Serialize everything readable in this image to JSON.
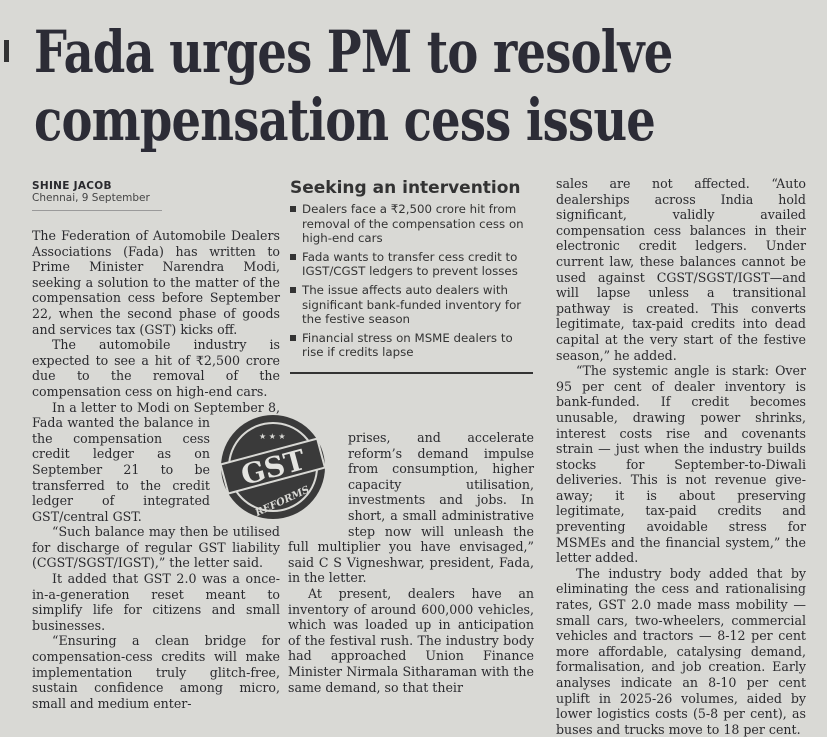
{
  "headline": "Fada urges PM to resolve compensation cess issue",
  "byline": {
    "author": "SHINE JACOB",
    "dateline": "Chennai, 9 September"
  },
  "sidebar": {
    "title": "Seeking an intervention",
    "bullets": [
      "Dealers face a ₹2,500 crore hit from removal of the compensation cess on high-end cars",
      "Fada wants to transfer cess credit to IGST/CGST ledgers to prevent losses",
      "The issue affects auto dealers with significant bank-funded inventory for the festive season",
      "Financial stress on MSME dealers to rise if credits lapse"
    ]
  },
  "badge": {
    "text": "GST",
    "subtext": "REFORMS"
  },
  "columns": {
    "col1": [
      "The Federation of Automobile Dealers Associations (Fada) has written to Prime Minister Narendra Modi, seeking a solution to the matter of the compensation cess before September 22, when the second phase of goods and services tax (GST) kicks off.",
      "The automobile industry is expected to see a hit of ₹2,500 crore due to the removal of the compensation cess on high-end cars.",
      "In a letter to Modi on September 8, Fada wanted the balance in the compensation cess credit ledger as on September 21 to be transferred to the credit ledger of integrated GST/central GST.",
      "“Such balance may then be utilised for discharge of regular GST liability (CGST/SGST/IGST),” the letter said.",
      "It added that GST 2.0 was a once-in-a-generation reset meant to simplify life for citizens and small businesses.",
      "“Ensuring a clean bridge for compensation-cess credits will make implementation truly glitch-free, sustain confidence among micro, small and medium enter-"
    ],
    "col2": [
      "prises, and accelerate reform’s demand impulse from consumption, higher capacity utilisation, investments and jobs. In short, a small administrative step now will unleash the full multiplier you have envisaged,” said C S Vigneshwar, president, Fada, in the letter.",
      "At present, dealers have an inventory of around 600,000 vehicles, which was loaded up in anticipation of the festival rush. The industry body had approached Union Finance Minister Nirmala Sitharaman with the same demand, so that their"
    ],
    "col3": [
      "sales are not affected. “Auto dealerships across India hold significant, validly availed compensation cess balances in their electronic credit ledgers. Under current law, these balances cannot be used against CGST/SGST/IGST—and will lapse unless a transitional pathway is created. This converts legitimate, tax-paid credits into dead capital at the very start of the festive season,” he added.",
      "“The systemic angle is stark: Over 95 per cent of dealer inventory is bank-funded. If credit becomes unusable, drawing power shrinks, interest costs rise and covenants strain — just when the industry builds stocks for September-to-Diwali deliveries. This is not revenue give-away; it is about preserving legitimate, tax-paid credits and preventing avoidable stress for MSMEs and the financial system,” the letter added.",
      "The industry body added that by eliminating the cess and rationalising rates, GST 2.0 made mass mobility — small cars, two-wheelers, commercial vehicles and tractors — 8-12 per cent more affordable, catalysing demand, formalisation, and job creation. Early analyses indicate an 8-10 per cent uplift in 2025-26 volumes, aided by lower logistics costs (5-8 per cent), as buses and trucks move to 18 per cent."
    ]
  }
}
